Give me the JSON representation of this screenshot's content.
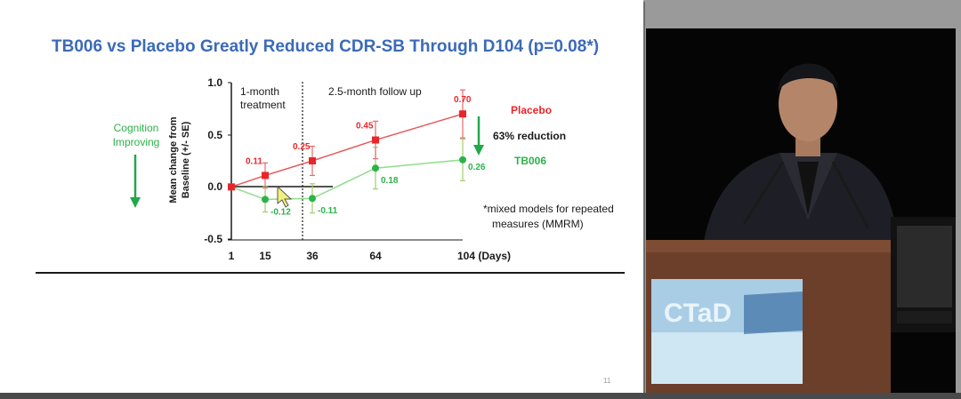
{
  "slide": {
    "title": "TB006 vs Placebo Greatly Reduced CDR-SB Through D104  (p=0.08*)",
    "page_number": "11",
    "cognition_label_line1": "Cognition",
    "cognition_label_line2": "Improving",
    "footnote_line1": "*mixed models for repeated",
    "footnote_line2": "measures (MMRM)",
    "reduction_label": "63% reduction",
    "phase1_line1": "1-month",
    "phase1_line2": "treatment",
    "phase2_label": "2.5-month follow up"
  },
  "colors": {
    "title": "#3b6ab8",
    "placebo": "#e8262a",
    "placebo_line": "#e35a5a",
    "tb006": "#2db24a",
    "tb006_line": "#8ede8a",
    "arrow": "#21a84a"
  },
  "chart_data": {
    "type": "line",
    "ylabel_line1": "Mean change from",
    "ylabel_line2": "Baseline (+/- SE)",
    "x_tick_labels": [
      "1",
      "15",
      "36",
      "64",
      "104 (Days)"
    ],
    "x": [
      1,
      15,
      36,
      64,
      104
    ],
    "ylim": [
      -0.5,
      1.0
    ],
    "y_ticks": [
      "1.0",
      "0.5",
      "0.0",
      "-0.5"
    ],
    "y_tick_values": [
      1.0,
      0.5,
      0.0,
      -0.5
    ],
    "series": [
      {
        "name": "Placebo",
        "values": [
          0,
          0.11,
          0.25,
          0.45,
          0.7
        ],
        "errors": [
          0,
          0.12,
          0.14,
          0.18,
          0.23
        ],
        "labels": [
          "",
          "0.11",
          "0.25",
          "0.45",
          "0.70"
        ]
      },
      {
        "name": "TB006",
        "values": [
          0,
          -0.12,
          -0.11,
          0.18,
          0.26
        ],
        "errors": [
          0,
          0.12,
          0.14,
          0.2,
          0.2
        ],
        "labels": [
          "",
          "-0.12",
          "-0.11",
          "0.18",
          "0.26"
        ]
      }
    ]
  }
}
